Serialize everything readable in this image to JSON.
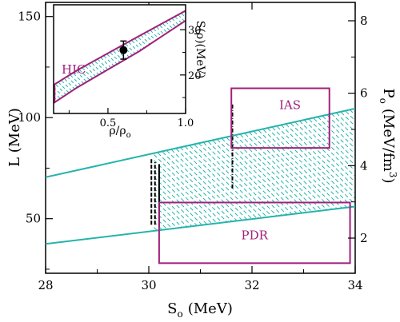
{
  "chart_data": [
    {
      "type": "area",
      "x_label_main": "S",
      "x_label_sub": "o",
      "x_label_unit": "(MeV)",
      "y_label": "L (MeV)",
      "y2_label_main": "P",
      "y2_label_sub": "o",
      "y2_label_unit": "(MeV/fm",
      "y2_label_sup": "3",
      "y2_label_close": ")",
      "xlim": [
        28,
        34
      ],
      "ylim": [
        23,
        157
      ],
      "x_ticks": [
        "28",
        "30",
        "32",
        "34"
      ],
      "x_tick_values": [
        28,
        30,
        32,
        34
      ],
      "y_ticks": [
        "50",
        "100",
        "150"
      ],
      "y_tick_values": [
        50,
        100,
        150
      ],
      "y2_ticks": [
        "2",
        "4",
        "6",
        "8"
      ],
      "y2_tick_values": [
        2,
        4,
        6,
        8
      ],
      "band": {
        "color": "#26b3ac",
        "x": [
          28,
          34
        ],
        "upper": [
          70.5,
          104.5
        ],
        "lower": [
          37.5,
          56.0
        ],
        "shaded_x": [
          30.1,
          34
        ]
      },
      "boxes": [
        {
          "label": "IAS",
          "color": "#a0207a",
          "x": [
            31.6,
            33.5
          ],
          "y": [
            85,
            114.5
          ],
          "left_edge_y": [
            85,
            102
          ]
        },
        {
          "label": "PDR",
          "color": "#a0207a",
          "x": [
            30.2,
            33.9
          ],
          "y": [
            28,
            58
          ]
        }
      ],
      "vertical_lines": [
        {
          "x": 30.05,
          "y": [
            47,
            80
          ],
          "style": "dashed",
          "color": "#000000"
        },
        {
          "x": 30.12,
          "y": [
            47,
            78
          ],
          "style": "dashed",
          "color": "#000000"
        },
        {
          "x": 30.2,
          "y": [
            46,
            77
          ],
          "style": "solid",
          "color": "#000000"
        },
        {
          "x": 31.62,
          "y": [
            65,
            107
          ],
          "style": "dashdot",
          "color": "#000000"
        }
      ]
    },
    {
      "type": "area",
      "x_label": "ρ/ρ",
      "x_label_sub": "o",
      "y_label": "S(ρ)(MeV)",
      "xlim": [
        0.15,
        1.0
      ],
      "ylim": [
        11.5,
        35.5
      ],
      "x_ticks": [
        "0.5",
        "1.0"
      ],
      "x_tick_values": [
        0.5,
        1.0
      ],
      "y_ticks": [
        "20",
        "30"
      ],
      "y_tick_values": [
        20,
        30
      ],
      "band": {
        "label": "HIC",
        "color": "#a0207a",
        "x": [
          0.15,
          0.3,
          0.5,
          0.7,
          0.85,
          1.0
        ],
        "upper": [
          17.8,
          21.0,
          24.8,
          28.6,
          31.4,
          34.2
        ],
        "lower": [
          13.8,
          17.2,
          21.2,
          25.2,
          28.6,
          32.0
        ]
      },
      "point": {
        "x": 0.6,
        "y": 25.5,
        "err": 2.0
      }
    }
  ]
}
